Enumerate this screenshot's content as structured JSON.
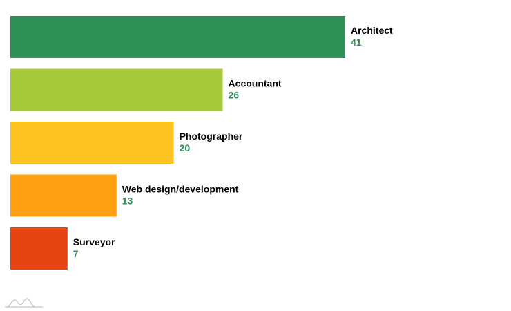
{
  "chart_data": {
    "type": "bar",
    "orientation": "horizontal",
    "categories": [
      "Architect",
      "Accountant",
      "Photographer",
      "Web design/development",
      "Surveyor"
    ],
    "values": [
      41,
      26,
      20,
      13,
      7
    ],
    "colors": [
      "#2e8f57",
      "#a6c83b",
      "#fdc31f",
      "#ffa010",
      "#e84412"
    ],
    "value_label_color": "#2e8f57",
    "title": "",
    "xlabel": "",
    "ylabel": "",
    "xlim": [
      0,
      41
    ],
    "grid": false,
    "legend": "none"
  },
  "watermark": {
    "icon": "mountain-logo-icon"
  }
}
